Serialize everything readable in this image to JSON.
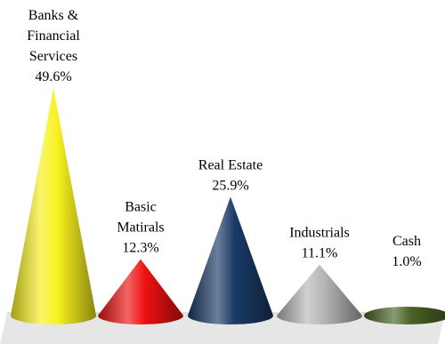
{
  "chart_data": {
    "type": "bar",
    "bar_shape": "cone",
    "categories": [
      [
        "Banks &",
        "Financial",
        "Services"
      ],
      [
        "Basic",
        "Matirals"
      ],
      [
        "Real Estate"
      ],
      [
        "Industrials"
      ],
      [
        "Cash"
      ]
    ],
    "values": [
      49.6,
      12.3,
      25.9,
      11.1,
      1.0
    ],
    "value_labels": [
      "49.6%",
      "12.3%",
      "25.9%",
      "11.1%",
      "1.0%"
    ],
    "colors": [
      "#f7f11e",
      "#ee1111",
      "#1a3a66",
      "#b6b6b6",
      "#4a6325"
    ],
    "title": "",
    "xlabel": "",
    "ylabel": "",
    "ylim": [
      0,
      50
    ],
    "grid": false,
    "legend": "none"
  }
}
